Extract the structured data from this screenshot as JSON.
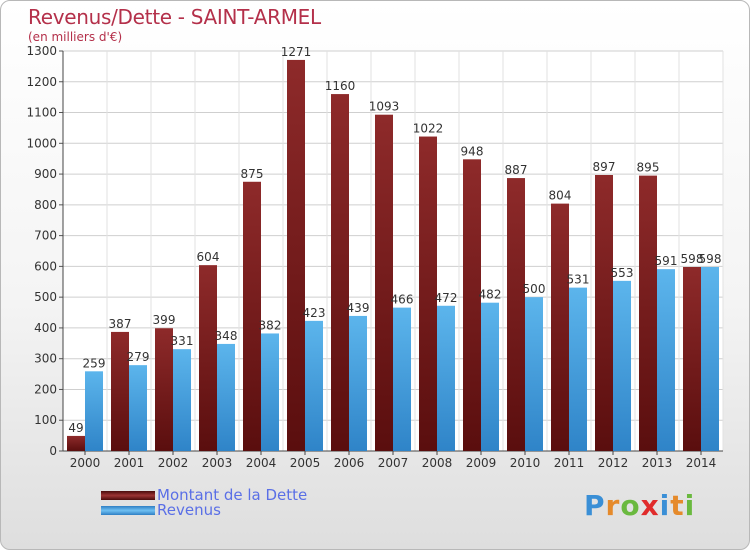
{
  "header": {
    "title": "Revenus/Dette - SAINT-ARMEL",
    "subtitle": "(en milliers d'€)"
  },
  "legend": {
    "dette_label": "Montant de la Dette",
    "revenus_label": "Revenus"
  },
  "logo": {
    "letters": [
      "P",
      "r",
      "o",
      "x",
      "i",
      "t",
      "i"
    ],
    "colors": [
      "#3a8fd6",
      "#e58a2b",
      "#6ab93f",
      "#e02b2b",
      "#3a8fd6",
      "#e58a2b",
      "#6ab93f"
    ]
  },
  "colors": {
    "dette": "#7a1c1c",
    "revenus": "#4aa3e0",
    "title": "#b4304a",
    "legend_text": "#5a6fe6"
  },
  "chart_data": {
    "type": "bar",
    "title": "Revenus/Dette - SAINT-ARMEL",
    "subtitle": "(en milliers d'€)",
    "categories": [
      "2000",
      "2001",
      "2002",
      "2003",
      "2004",
      "2005",
      "2006",
      "2007",
      "2008",
      "2009",
      "2010",
      "2011",
      "2012",
      "2013",
      "2014"
    ],
    "series": [
      {
        "name": "Montant de la Dette",
        "values": [
          49,
          387,
          399,
          604,
          875,
          1271,
          1160,
          1093,
          1022,
          948,
          887,
          804,
          897,
          895,
          598
        ]
      },
      {
        "name": "Revenus",
        "values": [
          259,
          279,
          331,
          348,
          382,
          423,
          439,
          466,
          472,
          482,
          500,
          531,
          553,
          591,
          598
        ]
      }
    ],
    "ylim": [
      0,
      1300
    ],
    "yticks": [
      0,
      100,
      200,
      300,
      400,
      500,
      600,
      700,
      800,
      900,
      1000,
      1100,
      1200,
      1300
    ],
    "grid": true,
    "legend_position": "bottom-left"
  }
}
